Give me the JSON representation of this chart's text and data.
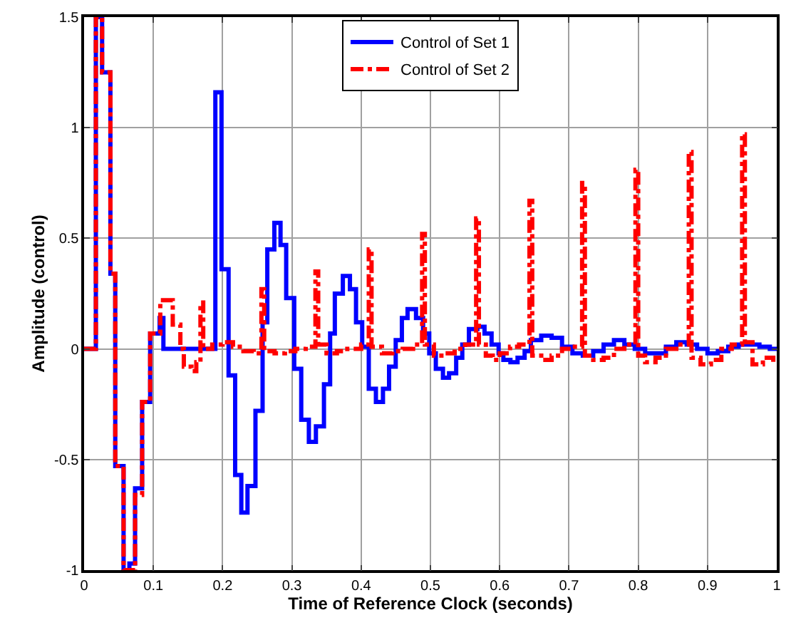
{
  "chart_data": {
    "type": "step",
    "xlabel": "Time of Reference Clock (seconds)",
    "ylabel": "Amplitude (control)",
    "xlim": [
      0,
      1
    ],
    "xticks": [
      0,
      0.1,
      0.2,
      0.3,
      0.4,
      0.5,
      0.6,
      0.7,
      0.8,
      0.9,
      1
    ],
    "ylim": [
      -1,
      1.5
    ],
    "yticks": [
      -1,
      -0.5,
      0,
      0.5,
      1,
      1.5
    ],
    "grid": true,
    "legend": "top",
    "marker": "none",
    "series": [
      {
        "name": "Control of Set 1",
        "color": "#0000ff",
        "line_style": "solid",
        "x": [
          0,
          0.017,
          0.026,
          0.038,
          0.045,
          0.057,
          0.0654,
          0.0736,
          0.0838,
          0.0954,
          0.1091,
          0.1145,
          0.1895,
          0.1984,
          0.2086,
          0.2181,
          0.227,
          0.2359,
          0.2474,
          0.2577,
          0.2645,
          0.2747,
          0.2836,
          0.2918,
          0.3034,
          0.3135,
          0.3245,
          0.3347,
          0.3463,
          0.3552,
          0.362,
          0.3736,
          0.3838,
          0.3926,
          0.4015,
          0.411,
          0.4213,
          0.4315,
          0.4403,
          0.4499,
          0.4588,
          0.467,
          0.4792,
          0.4894,
          0.4983,
          0.5078,
          0.5181,
          0.5269,
          0.5372,
          0.546,
          0.5556,
          0.5678,
          0.5781,
          0.5883,
          0.5985,
          0.6053,
          0.6155,
          0.6258,
          0.636,
          0.645,
          0.66,
          0.675,
          0.69,
          0.705,
          0.72,
          0.735,
          0.75,
          0.765,
          0.78,
          0.795,
          0.81,
          0.825,
          0.84,
          0.855,
          0.87,
          0.885,
          0.9,
          0.915,
          0.93,
          0.945,
          0.96,
          0.975,
          0.99,
          1
        ],
        "values": [
          0,
          1.5,
          1.25,
          0.34,
          -0.53,
          -1,
          -0.97,
          -0.63,
          -0.24,
          0.07,
          0.14,
          0,
          1.16,
          0.36,
          -0.12,
          -0.57,
          -0.74,
          -0.62,
          -0.28,
          0.12,
          0.45,
          0.57,
          0.47,
          0.23,
          -0.09,
          -0.32,
          -0.42,
          -0.35,
          -0.16,
          0.07,
          0.25,
          0.33,
          0.27,
          0.12,
          0.01,
          -0.18,
          -0.24,
          -0.18,
          -0.08,
          0.04,
          0.14,
          0.18,
          0.14,
          0.07,
          -0.02,
          -0.09,
          -0.13,
          -0.11,
          -0.04,
          0.02,
          0.09,
          0.1,
          0.07,
          0.02,
          -0.02,
          -0.05,
          -0.06,
          -0.04,
          -0.01,
          0.04,
          0.06,
          0.05,
          0.01,
          -0.02,
          -0.03,
          -0.01,
          0.02,
          0.04,
          0.02,
          0,
          -0.02,
          -0.02,
          0.01,
          0.03,
          0.02,
          0,
          -0.02,
          -0.01,
          0.01,
          0.02,
          0.02,
          0.01,
          0,
          0
        ]
      },
      {
        "name": "Control of Set 2",
        "color": "#ff0000",
        "line_style": "dashdot",
        "x": [
          0,
          0.017,
          0.026,
          0.038,
          0.045,
          0.057,
          0.0736,
          0.0838,
          0.0954,
          0.11,
          0.128,
          0.139,
          0.144,
          0.155,
          0.162,
          0.168,
          0.172,
          0.185,
          0.2,
          0.215,
          0.23,
          0.245,
          0.256,
          0.26,
          0.275,
          0.29,
          0.305,
          0.32,
          0.334,
          0.338,
          0.35,
          0.365,
          0.38,
          0.4,
          0.411,
          0.415,
          0.43,
          0.445,
          0.46,
          0.475,
          0.488,
          0.492,
          0.505,
          0.52,
          0.535,
          0.55,
          0.566,
          0.57,
          0.58,
          0.59,
          0.6,
          0.615,
          0.628,
          0.643,
          0.647,
          0.66,
          0.675,
          0.69,
          0.705,
          0.719,
          0.723,
          0.735,
          0.75,
          0.765,
          0.78,
          0.796,
          0.8,
          0.81,
          0.825,
          0.84,
          0.855,
          0.873,
          0.877,
          0.89,
          0.905,
          0.92,
          0.935,
          0.95,
          0.954,
          0.965,
          0.98,
          0.995,
          1
        ],
        "values": [
          0,
          1.5,
          1.25,
          0.34,
          -0.53,
          -1,
          -0.66,
          -0.24,
          0.07,
          0.22,
          0.11,
          0,
          -0.08,
          -0.1,
          -0.06,
          0.21,
          0,
          0.02,
          0.03,
          0.01,
          -0.01,
          -0.02,
          0.27,
          -0.01,
          -0.02,
          -0.01,
          0,
          0.01,
          0.35,
          0.02,
          -0.02,
          -0.01,
          0,
          0.02,
          0.45,
          0.01,
          -0.02,
          -0.01,
          0,
          0.02,
          0.52,
          0.02,
          -0.03,
          -0.02,
          0,
          0.02,
          0.59,
          0.02,
          -0.03,
          -0.05,
          -0.02,
          0.01,
          0.02,
          0.67,
          -0.03,
          -0.05,
          -0.03,
          0,
          0.01,
          0.75,
          -0.03,
          -0.05,
          -0.04,
          0,
          0.02,
          0.81,
          -0.03,
          -0.06,
          -0.04,
          0,
          0.02,
          0.89,
          -0.04,
          -0.07,
          -0.05,
          0,
          0.02,
          0.97,
          0.03,
          -0.07,
          -0.04,
          -0.06,
          -0.06
        ]
      }
    ]
  }
}
